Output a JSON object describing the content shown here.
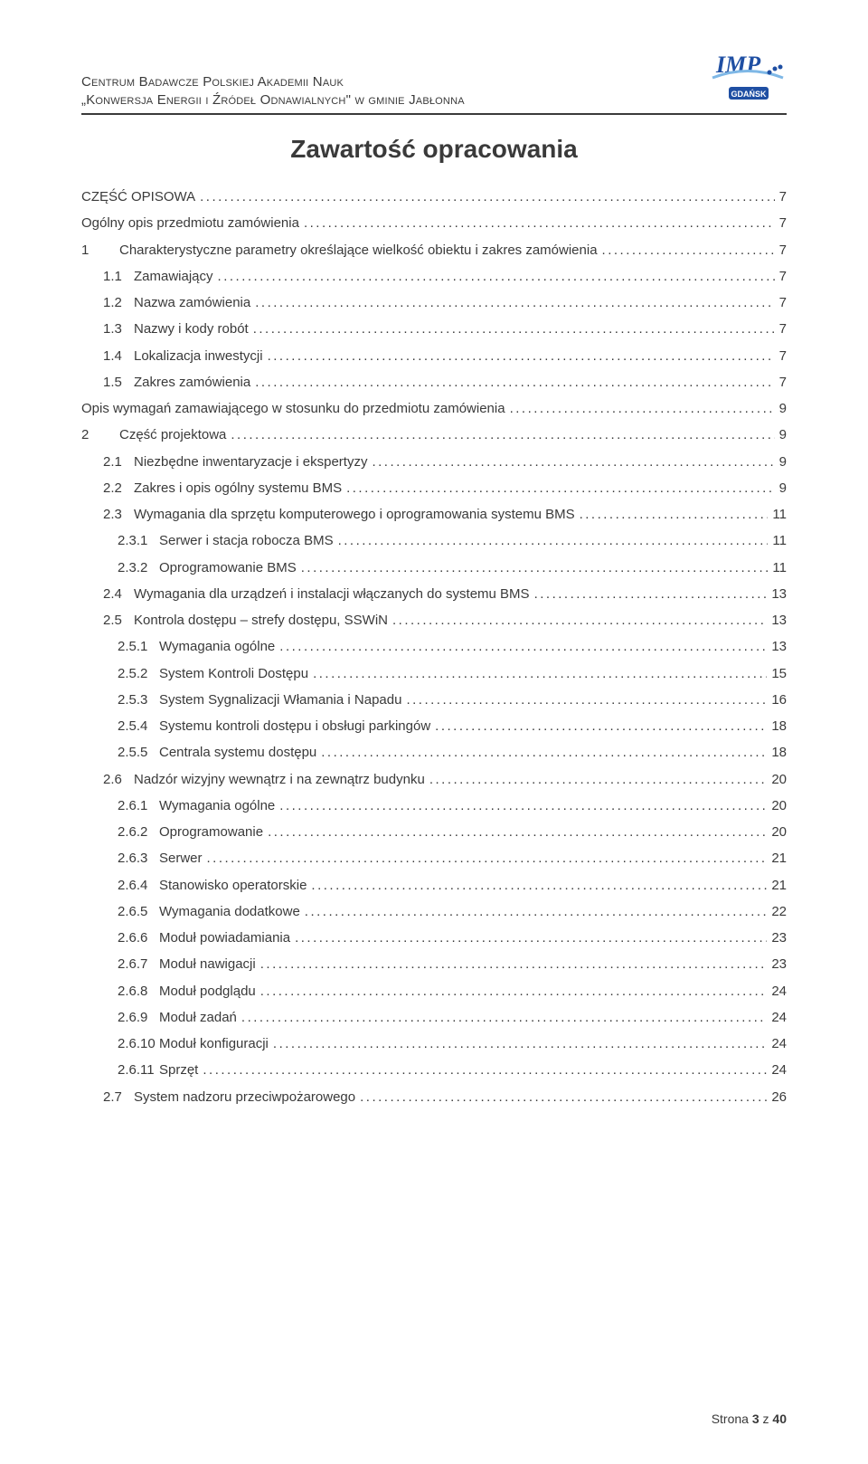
{
  "header": {
    "line1": "Centrum Badawcze Polskiej Akademii Nauk",
    "line2": "„Konwersja Energii i Źródeł Odnawialnych\" w gminie Jabłonna",
    "logo_text_top": "IMP",
    "logo_text_bottom": "GDAŃSK",
    "logo_color_primary": "#1f4fa3",
    "logo_color_accent": "#7fb8e6"
  },
  "title": "Zawartość opracowania",
  "toc": [
    {
      "level": 0,
      "num": "",
      "label": "CZĘŚĆ OPISOWA",
      "page": "7"
    },
    {
      "level": 0,
      "num": "",
      "label": "Ogólny opis przedmiotu zamówienia",
      "page": "7"
    },
    {
      "level": 1,
      "num": "1",
      "label": "Charakterystyczne parametry określające wielkość obiektu i zakres zamówienia",
      "page": "7"
    },
    {
      "level": 2,
      "num": "1.1",
      "label": "Zamawiający",
      "page": "7"
    },
    {
      "level": 2,
      "num": "1.2",
      "label": "Nazwa zamówienia",
      "page": "7"
    },
    {
      "level": 2,
      "num": "1.3",
      "label": "Nazwy i kody robót",
      "page": "7"
    },
    {
      "level": 2,
      "num": "1.4",
      "label": "Lokalizacja inwestycji",
      "page": "7"
    },
    {
      "level": 2,
      "num": "1.5",
      "label": "Zakres zamówienia",
      "page": "7"
    },
    {
      "level": 0,
      "num": "",
      "label": "Opis wymagań zamawiającego w stosunku do przedmiotu zamówienia",
      "page": "9"
    },
    {
      "level": 1,
      "num": "2",
      "label": "Część projektowa",
      "page": "9"
    },
    {
      "level": 2,
      "num": "2.1",
      "label": "Niezbędne inwentaryzacje i ekspertyzy",
      "page": "9"
    },
    {
      "level": 2,
      "num": "2.2",
      "label": "Zakres i opis ogólny systemu BMS",
      "page": "9"
    },
    {
      "level": 2,
      "num": "2.3",
      "label": "Wymagania dla sprzętu komputerowego i oprogramowania systemu BMS",
      "page": "11"
    },
    {
      "level": 3,
      "num": "2.3.1",
      "label": "Serwer i stacja robocza BMS",
      "page": "11"
    },
    {
      "level": 3,
      "num": "2.3.2",
      "label": "Oprogramowanie BMS",
      "page": "11"
    },
    {
      "level": 2,
      "num": "2.4",
      "label": "Wymagania dla urządzeń i instalacji włączanych do systemu BMS",
      "page": "13"
    },
    {
      "level": 2,
      "num": "2.5",
      "label": "Kontrola dostępu – strefy dostępu, SSWiN",
      "page": "13"
    },
    {
      "level": 3,
      "num": "2.5.1",
      "label": "Wymagania ogólne",
      "page": "13"
    },
    {
      "level": 3,
      "num": "2.5.2",
      "label": "System Kontroli Dostępu",
      "page": "15"
    },
    {
      "level": 3,
      "num": "2.5.3",
      "label": "System Sygnalizacji Włamania i Napadu",
      "page": "16"
    },
    {
      "level": 3,
      "num": "2.5.4",
      "label": "Systemu kontroli dostępu i obsługi parkingów",
      "page": "18"
    },
    {
      "level": 3,
      "num": "2.5.5",
      "label": "Centrala systemu dostępu",
      "page": "18"
    },
    {
      "level": 2,
      "num": "2.6",
      "label": "Nadzór wizyjny wewnątrz i na zewnątrz budynku",
      "page": "20"
    },
    {
      "level": 3,
      "num": "2.6.1",
      "label": "Wymagania ogólne",
      "page": "20"
    },
    {
      "level": 3,
      "num": "2.6.2",
      "label": "Oprogramowanie",
      "page": "20"
    },
    {
      "level": 3,
      "num": "2.6.3",
      "label": "Serwer",
      "page": "21"
    },
    {
      "level": 3,
      "num": "2.6.4",
      "label": "Stanowisko operatorskie",
      "page": "21"
    },
    {
      "level": 3,
      "num": "2.6.5",
      "label": "Wymagania dodatkowe",
      "page": "22"
    },
    {
      "level": 3,
      "num": "2.6.6",
      "label": "Moduł powiadamiania",
      "page": "23"
    },
    {
      "level": 3,
      "num": "2.6.7",
      "label": "Moduł nawigacji",
      "page": "23"
    },
    {
      "level": 3,
      "num": "2.6.8",
      "label": "Moduł podglądu",
      "page": "24"
    },
    {
      "level": 3,
      "num": "2.6.9",
      "label": "Moduł zadań",
      "page": "24"
    },
    {
      "level": 3,
      "num": "2.6.10",
      "label": "Moduł konfiguracji",
      "page": "24"
    },
    {
      "level": 3,
      "num": "2.6.11",
      "label": "Sprzęt",
      "page": "24"
    },
    {
      "level": 2,
      "num": "2.7",
      "label": "System nadzoru przeciwpożarowego",
      "page": "26"
    }
  ],
  "footer": {
    "prefix": "Strona ",
    "current": "3",
    "sep": " z ",
    "total": "40"
  },
  "colors": {
    "text": "#3a3a3a",
    "bg": "#ffffff"
  }
}
